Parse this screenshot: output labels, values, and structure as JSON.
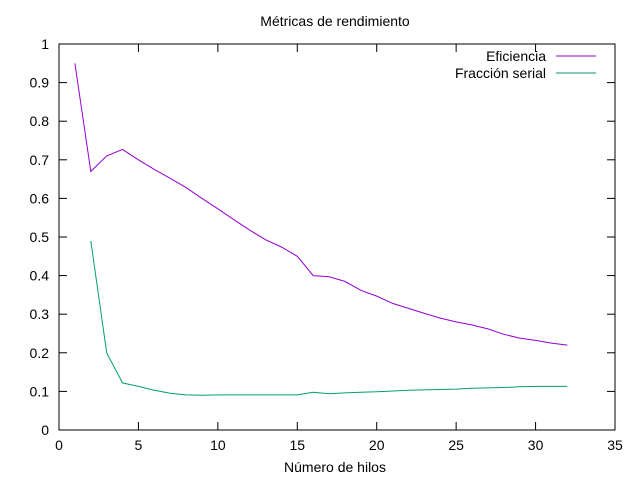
{
  "chart_data": {
    "type": "line",
    "title": "Métricas de rendimiento",
    "xlabel": "Número de hilos",
    "ylabel": "",
    "xlim": [
      0,
      35
    ],
    "ylim": [
      0,
      1
    ],
    "x_ticks": [
      0,
      5,
      10,
      15,
      20,
      25,
      30,
      35
    ],
    "y_ticks": [
      0,
      0.1,
      0.2,
      0.3,
      0.4,
      0.5,
      0.6,
      0.7,
      0.8,
      0.9,
      1
    ],
    "x_tick_labels": [
      "0",
      "5",
      "10",
      "15",
      "20",
      "25",
      "30",
      "35"
    ],
    "y_tick_labels": [
      "0",
      "0.1",
      "0.2",
      "0.3",
      "0.4",
      "0.5",
      "0.6",
      "0.7",
      "0.8",
      "0.9",
      "1"
    ],
    "grid": false,
    "legend_position": "top-right",
    "series": [
      {
        "name": "Eficiencia",
        "color": "#9400d3",
        "points": [
          [
            1,
            0.95
          ],
          [
            2,
            0.67
          ],
          [
            3,
            0.71
          ],
          [
            4,
            0.727
          ],
          [
            5,
            0.7
          ],
          [
            6,
            0.675
          ],
          [
            7,
            0.652
          ],
          [
            8,
            0.628
          ],
          [
            9,
            0.6
          ],
          [
            10,
            0.573
          ],
          [
            11,
            0.545
          ],
          [
            12,
            0.518
          ],
          [
            13,
            0.493
          ],
          [
            14,
            0.474
          ],
          [
            15,
            0.45
          ],
          [
            16,
            0.4
          ],
          [
            17,
            0.397
          ],
          [
            18,
            0.385
          ],
          [
            19,
            0.362
          ],
          [
            20,
            0.347
          ],
          [
            21,
            0.328
          ],
          [
            22,
            0.315
          ],
          [
            23,
            0.302
          ],
          [
            24,
            0.29
          ],
          [
            25,
            0.28
          ],
          [
            26,
            0.272
          ],
          [
            27,
            0.262
          ],
          [
            28,
            0.248
          ],
          [
            29,
            0.238
          ],
          [
            30,
            0.232
          ],
          [
            31,
            0.225
          ],
          [
            32,
            0.22
          ]
        ]
      },
      {
        "name": "Fracción serial",
        "color": "#009e73",
        "points": [
          [
            2,
            0.49
          ],
          [
            3,
            0.2
          ],
          [
            4,
            0.122
          ],
          [
            5,
            0.113
          ],
          [
            6,
            0.103
          ],
          [
            7,
            0.095
          ],
          [
            8,
            0.091
          ],
          [
            9,
            0.09
          ],
          [
            10,
            0.091
          ],
          [
            11,
            0.091
          ],
          [
            12,
            0.091
          ],
          [
            13,
            0.091
          ],
          [
            14,
            0.091
          ],
          [
            15,
            0.091
          ],
          [
            16,
            0.098
          ],
          [
            17,
            0.094
          ],
          [
            18,
            0.096
          ],
          [
            19,
            0.098
          ],
          [
            20,
            0.099
          ],
          [
            21,
            0.101
          ],
          [
            22,
            0.103
          ],
          [
            23,
            0.104
          ],
          [
            24,
            0.105
          ],
          [
            25,
            0.106
          ],
          [
            26,
            0.108
          ],
          [
            27,
            0.109
          ],
          [
            28,
            0.11
          ],
          [
            29,
            0.112
          ],
          [
            30,
            0.113
          ],
          [
            31,
            0.113
          ],
          [
            32,
            0.113
          ]
        ]
      }
    ]
  }
}
